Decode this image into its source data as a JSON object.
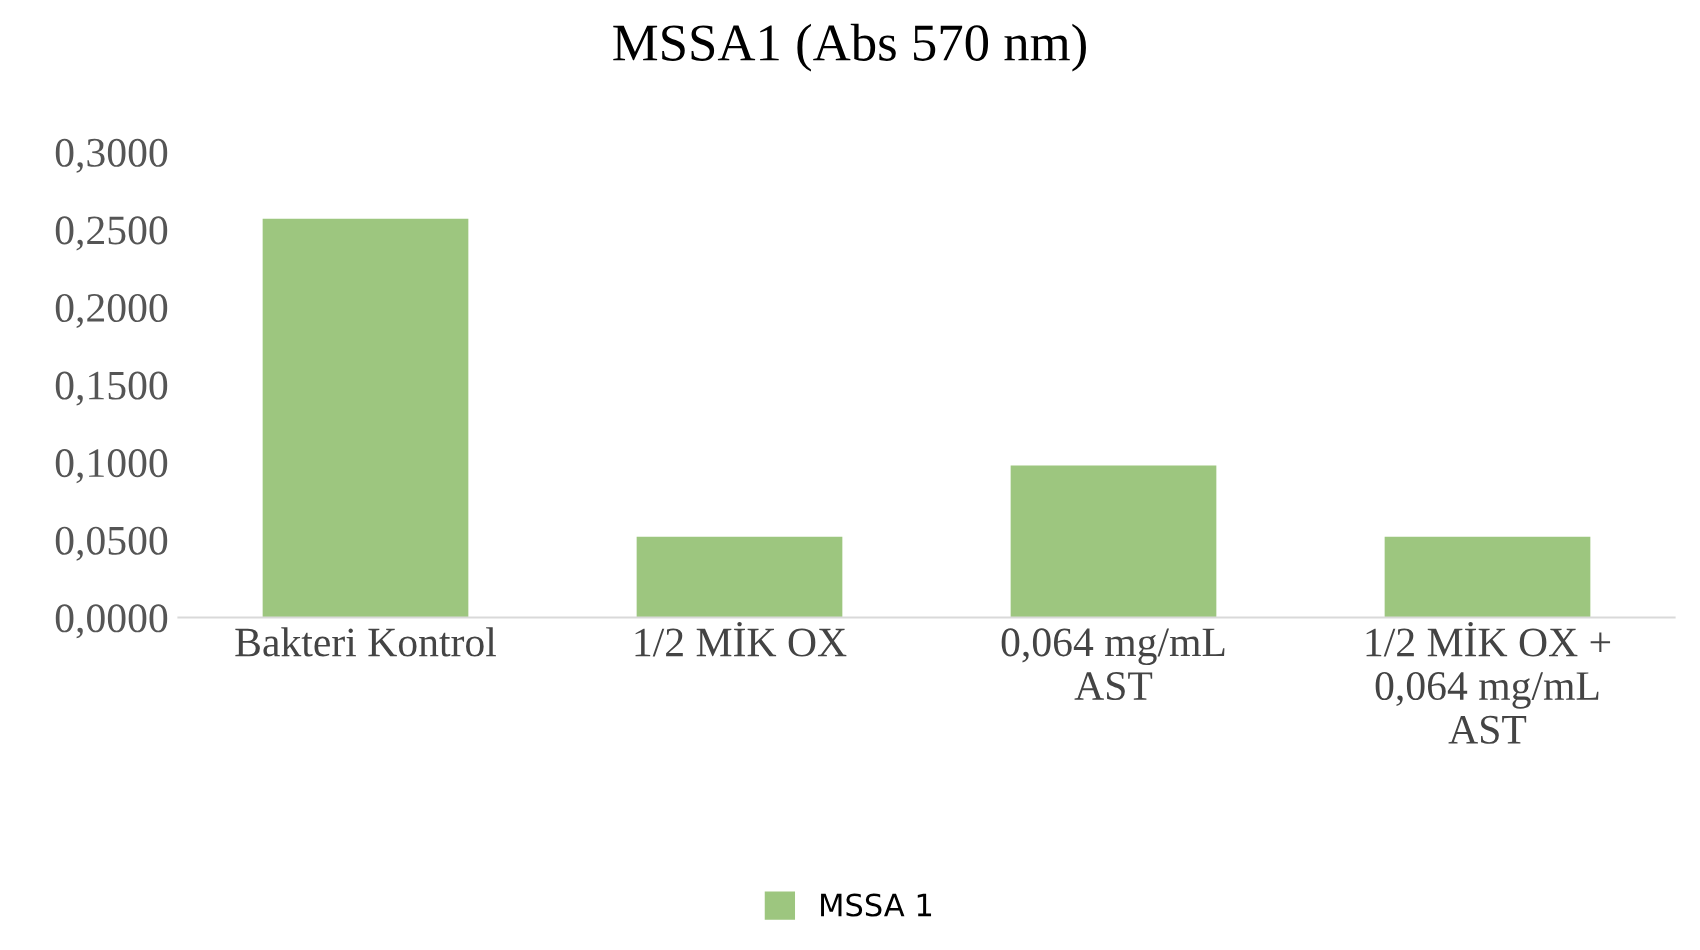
{
  "chart_data": {
    "type": "bar",
    "title": "MSSA1 (Abs 570 nm)",
    "categories": [
      "Bakteri Kontrol",
      "1/2 MİK OX",
      "0,064 mg/mL\nAST",
      "1/2 MİK OX +\n0,064 mg/mL\nAST"
    ],
    "series": [
      {
        "name": "MSSA 1",
        "color": "#9dc67f",
        "values": [
          0.257,
          0.052,
          0.098,
          0.052
        ]
      }
    ],
    "ylim": [
      0,
      0.3
    ],
    "yticks": [
      {
        "value": 0,
        "label": "0,0000"
      },
      {
        "value": 0.05,
        "label": "0,0500"
      },
      {
        "value": 0.1,
        "label": "0,1000"
      },
      {
        "value": 0.15,
        "label": "0,1500"
      },
      {
        "value": 0.2,
        "label": "0,2000"
      },
      {
        "value": 0.25,
        "label": "0,2500"
      },
      {
        "value": 0.3,
        "label": "0,3000"
      }
    ],
    "grid": false,
    "legend": "bottom"
  }
}
